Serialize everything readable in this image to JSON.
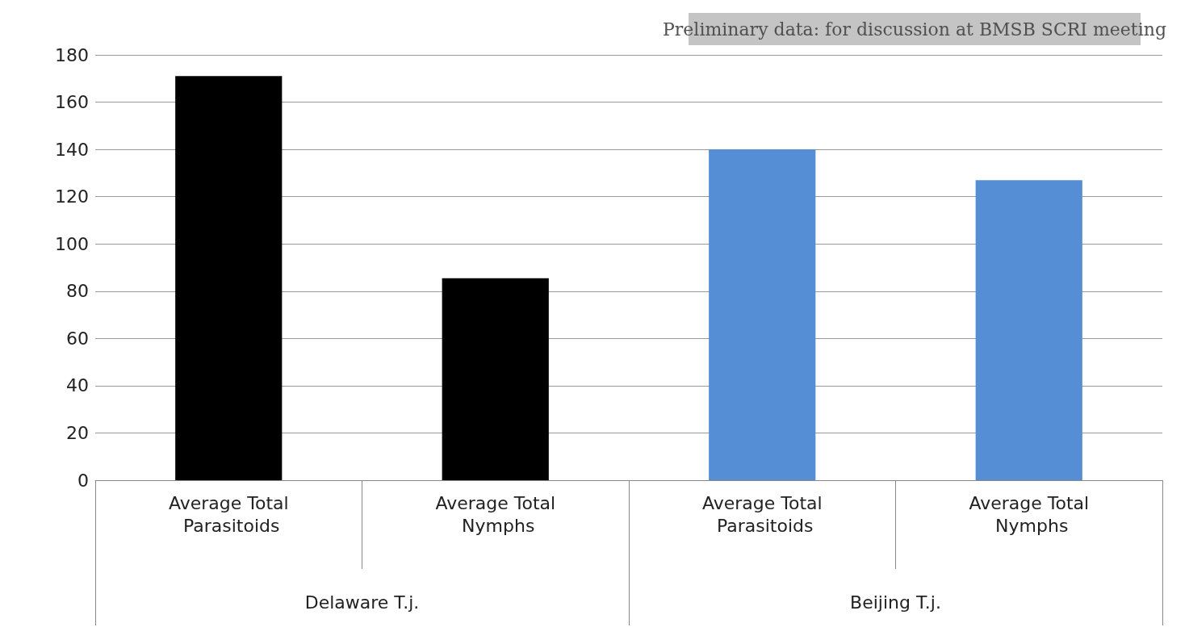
{
  "chart_data": {
    "type": "bar",
    "categories": [
      "Average Total Parasitoids",
      "Average Total Nymphs",
      "Average Total Parasitoids",
      "Average Total Nymphs"
    ],
    "values": [
      171,
      85.5,
      140,
      127
    ],
    "colors": [
      "#000000",
      "#000000",
      "#558ed5",
      "#558ed5"
    ],
    "ylim": [
      0,
      180
    ],
    "yticks": [
      0,
      20,
      40,
      60,
      80,
      100,
      120,
      140,
      160,
      180
    ],
    "grid": "y",
    "annotations": [
      "Delaware T.j.",
      "Beijing T.j.",
      "Preliminary data: for discussion at BMSB SCRI meeting"
    ]
  }
}
